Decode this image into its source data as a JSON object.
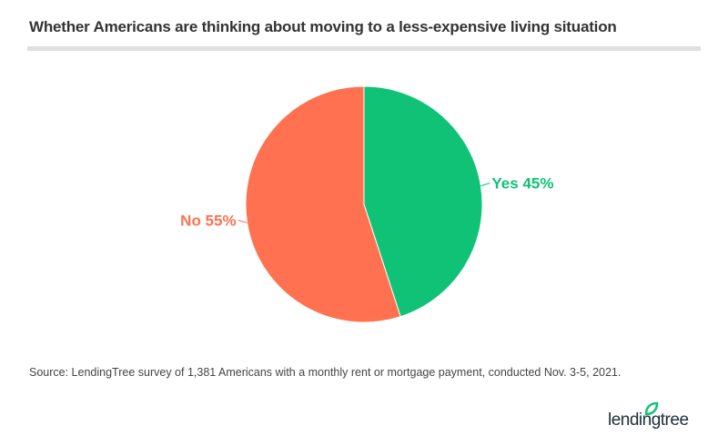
{
  "chart_data": {
    "type": "pie",
    "title": "Whether Americans are thinking about moving to a less-expensive living situation",
    "slices": [
      {
        "label": "Yes",
        "value": 45,
        "display": "Yes 45%",
        "color": "#0fc276"
      },
      {
        "label": "No",
        "value": 55,
        "display": "No 55%",
        "color": "#ff7150"
      }
    ],
    "start_angle": "top (12 o'clock), clockwise",
    "legend": "none (direct labels)"
  },
  "source": "Source: LendingTree survey of 1,381 Americans with a monthly rent or mortgage payment, conducted Nov. 3-5, 2021.",
  "logo": {
    "text": "lendingtree",
    "color": "#1d2f3b",
    "leaf_color": "#0fc276"
  }
}
